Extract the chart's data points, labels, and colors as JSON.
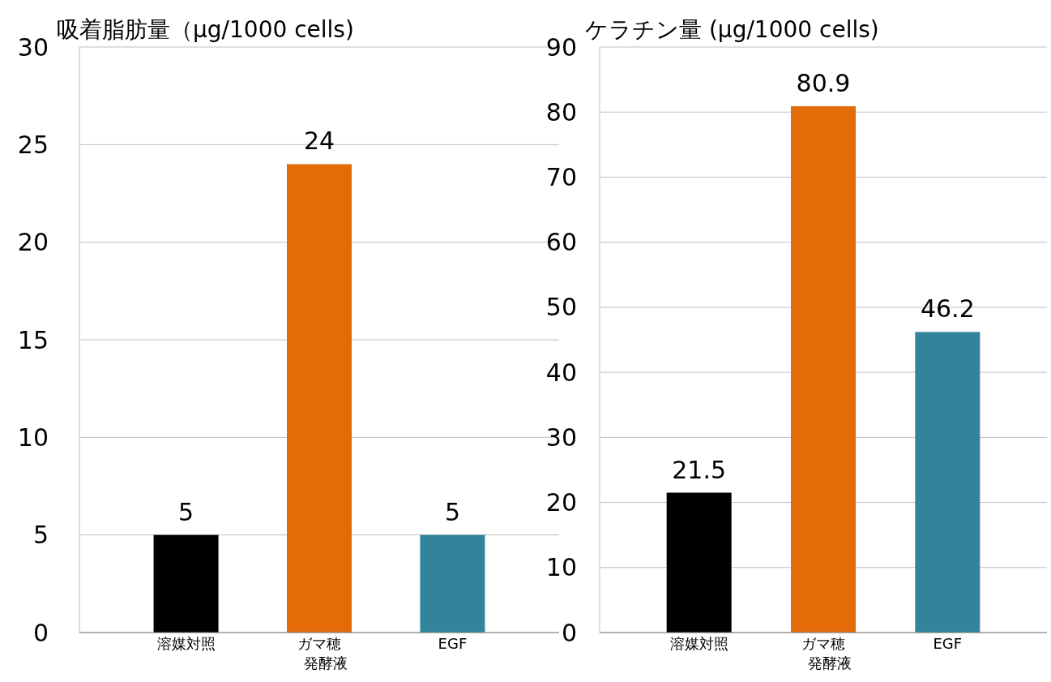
{
  "chart_data": [
    {
      "type": "bar",
      "title": "吸着脂肪量（µg/1000 cells)",
      "categories": [
        "溶媒対照",
        "ガマ穂発酵液",
        "EGF"
      ],
      "values": [
        5,
        24,
        5
      ],
      "colors": [
        "#000000",
        "#e36c09",
        "#31849b"
      ],
      "ylim": [
        0,
        30
      ],
      "yticks": [
        0,
        5,
        10,
        15,
        20,
        25,
        30
      ],
      "grid": "y",
      "data_labels": true
    },
    {
      "type": "bar",
      "title": "ケラチン量 (µg/1000 cells)",
      "categories": [
        "溶媒対照",
        "ガマ穂発酵液",
        "EGF"
      ],
      "values": [
        21.5,
        80.9,
        46.2
      ],
      "colors": [
        "#000000",
        "#e36c09",
        "#31849b"
      ],
      "ylim": [
        0,
        90
      ],
      "yticks": [
        0,
        10,
        20,
        30,
        40,
        50,
        60,
        70,
        80,
        90
      ],
      "grid": "y",
      "data_labels": true
    }
  ]
}
